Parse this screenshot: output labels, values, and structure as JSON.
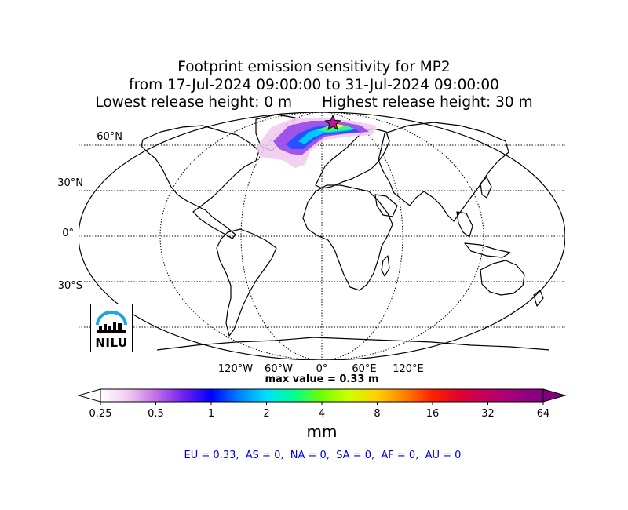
{
  "title": {
    "line1": "Footprint emission sensitivity for MP2",
    "line2": "from 17-Jul-2024 09:00:00 to 31-Jul-2024 09:00:00",
    "line3_left": "Lowest release height: 0 m",
    "line3_right": "Highest release height: 30 m"
  },
  "map": {
    "projection": "Robinson",
    "grid": true,
    "lat_labels": [
      "60°N",
      "30°N",
      "0°",
      "30°S"
    ],
    "lon_labels": [
      "120°W",
      "60°W",
      "0°",
      "60°E",
      "120°E"
    ],
    "release_site_icon": "star-icon",
    "max_value_text": "max value = 0.33 m"
  },
  "colorbar": {
    "ticks": [
      "0.25",
      "0.5",
      "1",
      "2",
      "4",
      "8",
      "16",
      "32",
      "64"
    ],
    "unit": "mm",
    "colors": [
      "#ffffff",
      "#f2c8f2",
      "#c070e6",
      "#7020f0",
      "#0000ff",
      "#0080ff",
      "#00e0ff",
      "#00ff90",
      "#70ff00",
      "#d0ff00",
      "#ffd000",
      "#ff8000",
      "#ff2000",
      "#e00030",
      "#c00060",
      "#a00080",
      "#800080"
    ]
  },
  "regions_text": "EU = 0.33,  AS = 0,  NA = 0,  SA = 0,  AF = 0,  AU = 0",
  "logo": {
    "text": "NILU",
    "icon": "nilu-logo-icon",
    "accent": "#1aa6e0"
  }
}
